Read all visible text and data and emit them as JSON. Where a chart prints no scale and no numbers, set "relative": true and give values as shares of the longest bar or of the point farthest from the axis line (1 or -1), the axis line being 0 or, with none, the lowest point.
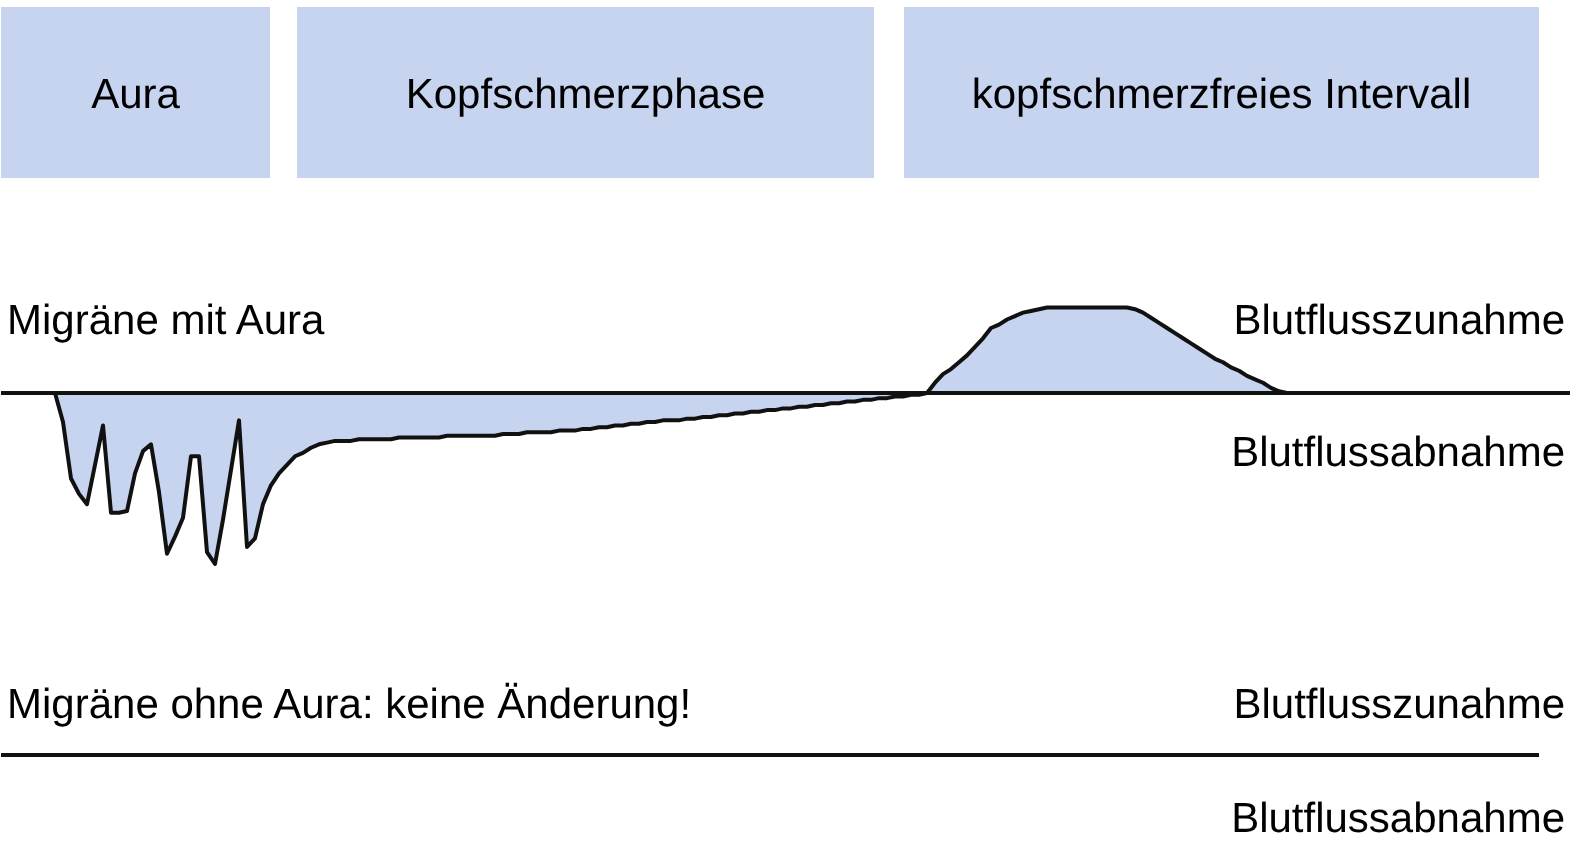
{
  "chart_data": [
    {
      "type": "other",
      "annotations": [
        "Aura",
        "Kopfschmerzphase",
        "kopfschmerzfreies Intervall"
      ]
    },
    {
      "type": "area",
      "title": "Migräne mit Aura",
      "relative": true,
      "annotations": [
        "Blutflusszunahme",
        "Blutflussabnahme"
      ],
      "categories": [
        null,
        null,
        null,
        null,
        null,
        null,
        null,
        null,
        null,
        null,
        null,
        null,
        null,
        null,
        null,
        null,
        null,
        null,
        null,
        null,
        null,
        null,
        null,
        null,
        null,
        null,
        null,
        null,
        null,
        null,
        null,
        null,
        null,
        null,
        null,
        null,
        null,
        null,
        null,
        null,
        null,
        null,
        null,
        null,
        null,
        null,
        null,
        null,
        null,
        null,
        null,
        null,
        null,
        null,
        null,
        null,
        null,
        null,
        null,
        null,
        null,
        null,
        null,
        null,
        null,
        null,
        null,
        null,
        null,
        null,
        null,
        null,
        null,
        null,
        null,
        null,
        null,
        null,
        null,
        null,
        null,
        null,
        null,
        null,
        null,
        null,
        null,
        null,
        null,
        null,
        null,
        null,
        null,
        null,
        null,
        null,
        null,
        null,
        null,
        null,
        null,
        null,
        null,
        null,
        null,
        null,
        null,
        null,
        null,
        null,
        null,
        null,
        null,
        null,
        null,
        null,
        null,
        null,
        null,
        null,
        null,
        null,
        null,
        null,
        null,
        null,
        null,
        null,
        null,
        null,
        null,
        null,
        null,
        null,
        null,
        null,
        null,
        null,
        null,
        null,
        null,
        null,
        null,
        null,
        null,
        null,
        null,
        null,
        null,
        null,
        null,
        null,
        null,
        null,
        null
      ],
      "series": [
        {
          "color": "#c6d4f0",
          "values": [
            0,
            -0.17,
            -0.5,
            -0.59,
            -0.65,
            -0.42,
            -0.19,
            -0.7,
            -0.7,
            -0.69,
            -0.47,
            -0.34,
            -0.3,
            -0.58,
            -0.94,
            -0.84,
            -0.73,
            -0.37,
            -0.37,
            -0.93,
            -1,
            -0.74,
            -0.45,
            -0.16,
            -0.9,
            -0.85,
            -0.65,
            -0.54,
            -0.47,
            -0.42,
            -0.37,
            -0.35,
            -0.32,
            -0.3,
            -0.29,
            -0.28,
            -0.28,
            -0.28,
            -0.27,
            -0.27,
            -0.27,
            -0.27,
            -0.27,
            -0.26,
            -0.26,
            -0.26,
            -0.26,
            -0.26,
            -0.26,
            -0.25,
            -0.25,
            -0.25,
            -0.25,
            -0.25,
            -0.25,
            -0.25,
            -0.24,
            -0.24,
            -0.24,
            -0.23,
            -0.23,
            -0.23,
            -0.23,
            -0.22,
            -0.22,
            -0.22,
            -0.21,
            -0.21,
            -0.2,
            -0.2,
            -0.19,
            -0.19,
            -0.18,
            -0.18,
            -0.17,
            -0.17,
            -0.16,
            -0.16,
            -0.16,
            -0.15,
            -0.15,
            -0.14,
            -0.14,
            -0.13,
            -0.13,
            -0.12,
            -0.12,
            -0.11,
            -0.11,
            -0.1,
            -0.1,
            -0.09,
            -0.09,
            -0.08,
            -0.08,
            -0.07,
            -0.07,
            -0.06,
            -0.06,
            -0.05,
            -0.05,
            -0.04,
            -0.04,
            -0.03,
            -0.03,
            -0.02,
            -0.02,
            -0.01,
            -0.01,
            0,
            0.06,
            0.11,
            0.14,
            0.18,
            0.22,
            0.27,
            0.32,
            0.38,
            0.4,
            0.43,
            0.45,
            0.47,
            0.48,
            0.49,
            0.5,
            0.5,
            0.5,
            0.5,
            0.5,
            0.5,
            0.5,
            0.5,
            0.5,
            0.5,
            0.5,
            0.49,
            0.47,
            0.44,
            0.41,
            0.38,
            0.35,
            0.32,
            0.29,
            0.26,
            0.23,
            0.2,
            0.18,
            0.15,
            0.13,
            0.1,
            0.08,
            0.06,
            0.03,
            0.01,
            0
          ]
        }
      ]
    },
    {
      "type": "other",
      "title": "Migräne ohne Aura: keine Änderung!",
      "annotations": [
        "Blutflusszunahme",
        "Blutflussabnahme"
      ]
    }
  ]
}
